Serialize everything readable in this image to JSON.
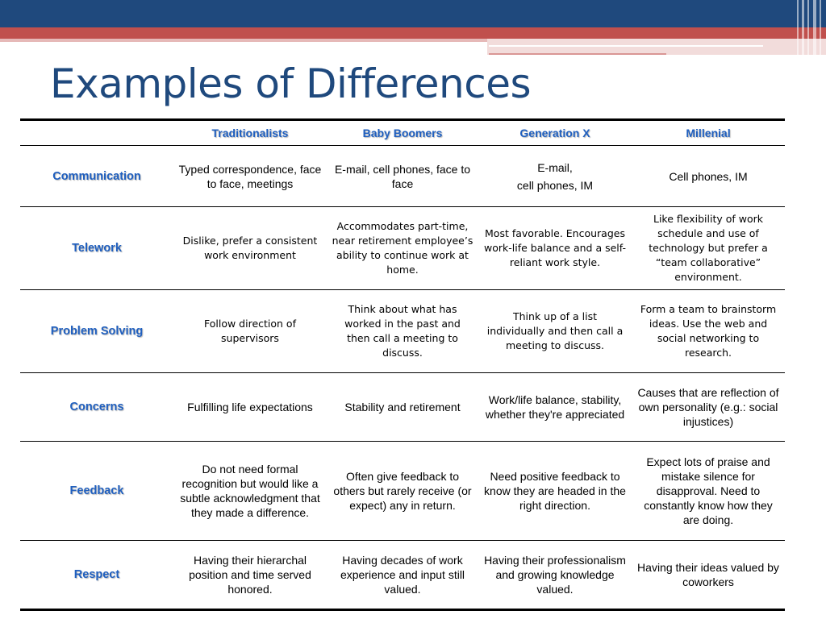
{
  "slide": {
    "title": "Examples of Differences"
  },
  "colors": {
    "banner_blue": "#1f497d",
    "banner_red": "#c0504d",
    "header_text": "#1f5fbf"
  },
  "table": {
    "headers": [
      "",
      "Traditionalists",
      "Baby Boomers",
      "Generation X",
      "Millenial"
    ],
    "rows": [
      {
        "label": "Communication",
        "cells": [
          "Typed correspondence, face to face, meetings",
          "E-mail, cell phones, face to face",
          "E-mail,\ncell phones, IM",
          "Cell phones, IM"
        ]
      },
      {
        "label": "Telework",
        "cells": [
          "Dislike, prefer a consistent work environment",
          "Accommodates part-time, near retirement employee’s ability to continue work at home.",
          "Most favorable. Encourages work-life balance and a self-reliant work style.",
          "Like flexibility of work schedule and use of technology but prefer a “team collaborative” environment."
        ]
      },
      {
        "label": "Problem Solving",
        "cells": [
          "Follow direction of supervisors",
          "Think about what has worked in the past and then call a meeting to discuss.",
          "Think up of a list individually and then call a meeting to discuss.",
          "Form a team to brainstorm ideas. Use the web and social networking to research."
        ]
      },
      {
        "label": "Concerns",
        "cells": [
          "Fulfilling life expectations",
          "Stability and retirement",
          "Work/life balance, stability, whether they're appreciated",
          "Causes that are reflection of own personality (e.g.: social injustices)"
        ]
      },
      {
        "label": "Feedback",
        "cells": [
          "Do not need formal recognition but would like a subtle acknowledgment that they made a difference.",
          "Often give feedback to others but rarely receive (or expect) any in return.",
          "Need positive feedback to know they are headed in the right direction.",
          "Expect lots of praise and mistake silence for disapproval.  Need to constantly know how they are doing."
        ]
      },
      {
        "label": "Respect",
        "cells": [
          "Having their hierarchal position and time served honored.",
          "Having decades of work experience and input still valued.",
          "Having their professionalism and growing knowledge valued.",
          "Having their ideas valued by coworkers"
        ]
      }
    ]
  }
}
